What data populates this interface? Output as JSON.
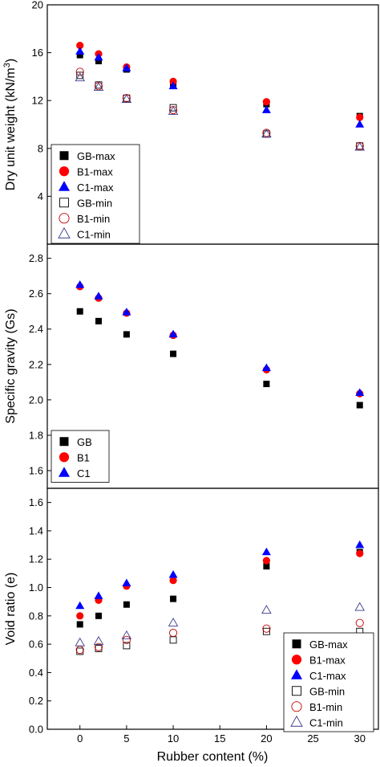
{
  "chart_data": [
    {
      "type": "scatter",
      "ylabel": "Dry unit weight (kN/m",
      "ylabel_sup": "3",
      "ylabel_close": ")",
      "ylim": [
        0,
        20
      ],
      "yticks": [
        4,
        8,
        12,
        16,
        20
      ],
      "ytick_labels": [
        "4",
        "8",
        "12",
        "16",
        "20"
      ],
      "legend_position": "lower-left",
      "series": [
        {
          "name": "GB-max",
          "marker": "square",
          "filled": true,
          "color": "#000000",
          "x": [
            0,
            2,
            5,
            10,
            20,
            30
          ],
          "y": [
            15.8,
            15.3,
            14.6,
            13.4,
            11.7,
            10.7
          ]
        },
        {
          "name": "B1-max",
          "marker": "circle",
          "filled": true,
          "color": "#ff0000",
          "x": [
            0,
            2,
            5,
            10,
            20,
            30
          ],
          "y": [
            16.6,
            15.9,
            14.8,
            13.6,
            11.9,
            10.6
          ]
        },
        {
          "name": "C1-max",
          "marker": "triangle",
          "filled": true,
          "color": "#0000ff",
          "x": [
            0,
            2,
            5,
            10,
            20,
            30
          ],
          "y": [
            16.1,
            15.6,
            14.7,
            13.2,
            11.2,
            10.0
          ]
        },
        {
          "name": "GB-min",
          "marker": "square",
          "filled": false,
          "color": "#000000",
          "x": [
            0,
            2,
            5,
            10,
            20,
            30
          ],
          "y": [
            14.1,
            13.3,
            12.2,
            11.4,
            9.2,
            8.2
          ]
        },
        {
          "name": "B1-min",
          "marker": "circle",
          "filled": false,
          "color": "#c00000",
          "x": [
            0,
            2,
            5,
            10,
            20,
            30
          ],
          "y": [
            14.4,
            13.2,
            12.2,
            11.2,
            9.3,
            8.2
          ]
        },
        {
          "name": "C1-min",
          "marker": "triangle",
          "filled": false,
          "color": "#3a3a8c",
          "x": [
            0,
            2,
            5,
            10,
            20,
            30
          ],
          "y": [
            13.9,
            13.1,
            12.1,
            11.1,
            9.2,
            8.1
          ]
        }
      ]
    },
    {
      "type": "scatter",
      "ylabel": "Specific gravity (Gs)",
      "ylim": [
        1.5,
        2.88
      ],
      "yticks": [
        1.6,
        1.8,
        2.0,
        2.2,
        2.4,
        2.6,
        2.8
      ],
      "ytick_labels": [
        "1.6",
        "1.8",
        "2.0",
        "2.2",
        "2.4",
        "2.6",
        "2.8"
      ],
      "legend_position": "lower-left",
      "series": [
        {
          "name": "GB",
          "marker": "square",
          "filled": true,
          "color": "#000000",
          "x": [
            0,
            2,
            5,
            10,
            20,
            30
          ],
          "y": [
            2.5,
            2.445,
            2.37,
            2.26,
            2.09,
            1.97
          ]
        },
        {
          "name": "B1",
          "marker": "circle",
          "filled": true,
          "color": "#ff0000",
          "x": [
            0,
            2,
            5,
            10,
            20,
            30
          ],
          "y": [
            2.64,
            2.575,
            2.49,
            2.365,
            2.17,
            2.035
          ]
        },
        {
          "name": "C1",
          "marker": "triangle",
          "filled": true,
          "color": "#0000ff",
          "x": [
            0,
            2,
            5,
            10,
            20,
            30
          ],
          "y": [
            2.65,
            2.585,
            2.495,
            2.37,
            2.18,
            2.04
          ]
        }
      ]
    },
    {
      "type": "scatter",
      "ylabel": "Void ratio (e)",
      "xlabel": "Rubber content (%)",
      "xlim": [
        -3.5,
        32
      ],
      "xticks": [
        0,
        5,
        10,
        15,
        20,
        25,
        30
      ],
      "xtick_labels": [
        "0",
        "5",
        "10",
        "15",
        "20",
        "25",
        "30"
      ],
      "ylim": [
        0.0,
        1.7
      ],
      "yticks": [
        0.0,
        0.2,
        0.4,
        0.6,
        0.8,
        1.0,
        1.2,
        1.4,
        1.6
      ],
      "ytick_labels": [
        "0.0",
        "0.2",
        "0.4",
        "0.6",
        "0.8",
        "1.0",
        "1.2",
        "1.4",
        "1.6"
      ],
      "legend_position": "lower-right",
      "series": [
        {
          "name": "GB-max",
          "marker": "square",
          "filled": true,
          "color": "#000000",
          "x": [
            0,
            2,
            5,
            10,
            20,
            30
          ],
          "y": [
            0.74,
            0.8,
            0.88,
            0.92,
            1.15,
            1.25
          ]
        },
        {
          "name": "B1-max",
          "marker": "circle",
          "filled": true,
          "color": "#ff0000",
          "x": [
            0,
            2,
            5,
            10,
            20,
            30
          ],
          "y": [
            0.8,
            0.91,
            1.01,
            1.05,
            1.19,
            1.24
          ]
        },
        {
          "name": "C1-max",
          "marker": "triangle",
          "filled": true,
          "color": "#0000ff",
          "x": [
            0,
            2,
            5,
            10,
            20,
            30
          ],
          "y": [
            0.87,
            0.94,
            1.03,
            1.09,
            1.25,
            1.3
          ]
        },
        {
          "name": "GB-min",
          "marker": "square",
          "filled": false,
          "color": "#000000",
          "x": [
            0,
            2,
            5,
            10,
            20,
            30
          ],
          "y": [
            0.55,
            0.57,
            0.59,
            0.63,
            0.69,
            0.69
          ]
        },
        {
          "name": "B1-min",
          "marker": "circle",
          "filled": false,
          "color": "#c00000",
          "x": [
            0,
            2,
            5,
            10,
            20,
            30
          ],
          "y": [
            0.56,
            0.58,
            0.63,
            0.68,
            0.71,
            0.75
          ]
        },
        {
          "name": "C1-min",
          "marker": "triangle",
          "filled": false,
          "color": "#3a3a8c",
          "x": [
            0,
            2,
            5,
            10,
            20,
            30
          ],
          "y": [
            0.61,
            0.62,
            0.66,
            0.75,
            0.84,
            0.86
          ]
        }
      ]
    }
  ]
}
